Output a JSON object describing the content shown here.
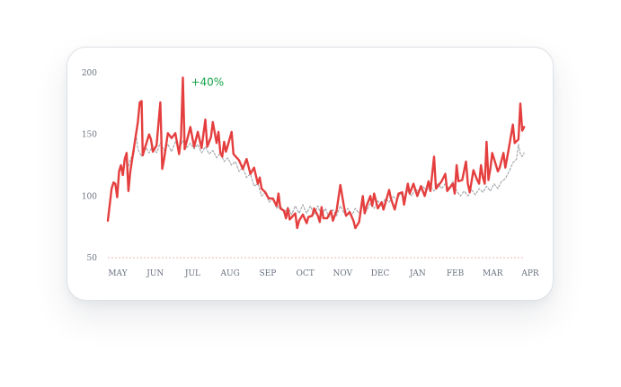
{
  "chart_data": {
    "type": "line",
    "title": "",
    "xlabel": "",
    "ylabel": "",
    "ylim": [
      50,
      200
    ],
    "yticks": [
      50,
      100,
      150,
      200
    ],
    "x_tick_labels": [
      "MAY",
      "JUN",
      "JUL",
      "AUG",
      "SEP",
      "OCT",
      "NOV",
      "DEC",
      "JAN",
      "FEB",
      "MAR",
      "APR"
    ],
    "annotation": {
      "text": "+40%",
      "color": "#16a34a"
    },
    "grid": false,
    "legend": "none",
    "series": [
      {
        "style": "solid",
        "color": "#e53e3e",
        "points": [
          [
            0.0,
            80
          ],
          [
            0.1,
            106
          ],
          [
            0.15,
            111
          ],
          [
            0.2,
            110
          ],
          [
            0.25,
            99
          ],
          [
            0.3,
            120
          ],
          [
            0.35,
            125
          ],
          [
            0.4,
            117
          ],
          [
            0.45,
            130
          ],
          [
            0.5,
            135
          ],
          [
            0.55,
            104
          ],
          [
            0.6,
            120
          ],
          [
            0.7,
            140
          ],
          [
            0.8,
            160
          ],
          [
            0.85,
            176
          ],
          [
            0.9,
            177
          ],
          [
            0.93,
            133
          ],
          [
            1.0,
            140
          ],
          [
            1.1,
            150
          ],
          [
            1.15,
            146
          ],
          [
            1.2,
            136
          ],
          [
            1.3,
            141
          ],
          [
            1.4,
            176
          ],
          [
            1.45,
            122
          ],
          [
            1.5,
            130
          ],
          [
            1.6,
            151
          ],
          [
            1.7,
            147
          ],
          [
            1.8,
            151
          ],
          [
            1.9,
            134
          ],
          [
            1.95,
            147
          ],
          [
            2.0,
            196
          ],
          [
            2.05,
            138
          ],
          [
            2.1,
            144
          ],
          [
            2.2,
            156
          ],
          [
            2.3,
            140
          ],
          [
            2.4,
            152
          ],
          [
            2.5,
            139
          ],
          [
            2.6,
            162
          ],
          [
            2.65,
            140
          ],
          [
            2.75,
            148
          ],
          [
            2.8,
            160
          ],
          [
            2.9,
            143
          ],
          [
            2.95,
            152
          ],
          [
            3.0,
            135
          ],
          [
            3.05,
            132
          ],
          [
            3.1,
            144
          ],
          [
            3.15,
            136
          ],
          [
            3.2,
            141
          ],
          [
            3.3,
            152
          ],
          [
            3.35,
            134
          ],
          [
            3.5,
            129
          ],
          [
            3.6,
            122
          ],
          [
            3.7,
            130
          ],
          [
            3.8,
            118
          ],
          [
            3.9,
            123
          ],
          [
            4.0,
            110
          ],
          [
            4.05,
            115
          ],
          [
            4.1,
            106
          ],
          [
            4.2,
            103
          ],
          [
            4.25,
            100
          ],
          [
            4.3,
            98
          ],
          [
            4.4,
            98
          ],
          [
            4.5,
            92
          ],
          [
            4.55,
            102
          ],
          [
            4.6,
            90
          ],
          [
            4.7,
            88
          ],
          [
            4.75,
            82
          ],
          [
            4.8,
            90
          ],
          [
            4.85,
            81
          ],
          [
            5.0,
            86
          ],
          [
            5.05,
            74
          ],
          [
            5.1,
            80
          ],
          [
            5.2,
            85
          ],
          [
            5.3,
            78
          ],
          [
            5.35,
            83
          ],
          [
            5.45,
            84
          ],
          [
            5.5,
            90
          ],
          [
            5.6,
            84
          ],
          [
            5.65,
            79
          ],
          [
            5.7,
            91
          ],
          [
            5.75,
            82
          ],
          [
            5.85,
            82
          ],
          [
            5.95,
            88
          ],
          [
            6.0,
            80
          ],
          [
            6.1,
            88
          ],
          [
            6.2,
            109
          ],
          [
            6.3,
            91
          ],
          [
            6.35,
            84
          ],
          [
            6.45,
            87
          ],
          [
            6.55,
            80
          ],
          [
            6.6,
            74
          ],
          [
            6.7,
            79
          ],
          [
            6.8,
            100
          ],
          [
            6.85,
            86
          ],
          [
            6.9,
            92
          ],
          [
            7.0,
            100
          ],
          [
            7.05,
            92
          ],
          [
            7.1,
            102
          ],
          [
            7.2,
            90
          ],
          [
            7.3,
            95
          ],
          [
            7.35,
            89
          ],
          [
            7.5,
            105
          ],
          [
            7.55,
            98
          ],
          [
            7.65,
            89
          ],
          [
            7.75,
            102
          ],
          [
            7.85,
            103
          ],
          [
            7.9,
            93
          ],
          [
            8.0,
            110
          ],
          [
            8.05,
            102
          ],
          [
            8.15,
            110
          ],
          [
            8.25,
            100
          ],
          [
            8.35,
            108
          ],
          [
            8.45,
            100
          ],
          [
            8.55,
            112
          ],
          [
            8.6,
            104
          ],
          [
            8.7,
            132
          ],
          [
            8.75,
            106
          ],
          [
            8.8,
            108
          ],
          [
            8.9,
            112
          ],
          [
            9.0,
            118
          ],
          [
            9.05,
            104
          ],
          [
            9.2,
            110
          ],
          [
            9.25,
            102
          ],
          [
            9.3,
            125
          ],
          [
            9.35,
            112
          ],
          [
            9.45,
            113
          ],
          [
            9.55,
            128
          ],
          [
            9.6,
            110
          ],
          [
            9.65,
            103
          ],
          [
            9.75,
            121
          ],
          [
            9.85,
            113
          ],
          [
            9.9,
            110
          ],
          [
            9.95,
            125
          ],
          [
            10.0,
            115
          ],
          [
            10.05,
            110
          ],
          [
            10.1,
            144
          ],
          [
            10.15,
            113
          ],
          [
            10.2,
            122
          ],
          [
            10.25,
            135
          ],
          [
            10.3,
            130
          ],
          [
            10.4,
            120
          ],
          [
            10.45,
            123
          ],
          [
            10.55,
            135
          ],
          [
            10.6,
            123
          ],
          [
            10.7,
            140
          ],
          [
            10.8,
            158
          ],
          [
            10.85,
            143
          ],
          [
            10.95,
            146
          ],
          [
            11.0,
            175
          ],
          [
            11.05,
            153
          ],
          [
            11.1,
            156
          ]
        ]
      },
      {
        "style": "dashed",
        "color": "#a0a4aa",
        "points": [
          [
            0.5,
            118
          ],
          [
            0.6,
            130
          ],
          [
            0.7,
            135
          ],
          [
            0.75,
            150
          ],
          [
            0.8,
            138
          ],
          [
            0.9,
            132
          ],
          [
            1.0,
            140
          ],
          [
            1.1,
            135
          ],
          [
            1.2,
            141
          ],
          [
            1.3,
            135
          ],
          [
            1.4,
            143
          ],
          [
            1.5,
            137
          ],
          [
            1.6,
            142
          ],
          [
            1.7,
            136
          ],
          [
            1.8,
            144
          ],
          [
            1.9,
            138
          ],
          [
            2.0,
            145
          ],
          [
            2.1,
            139
          ],
          [
            2.2,
            143
          ],
          [
            2.3,
            138
          ],
          [
            2.4,
            142
          ],
          [
            2.5,
            135
          ],
          [
            2.6,
            140
          ],
          [
            2.7,
            134
          ],
          [
            2.8,
            137
          ],
          [
            2.9,
            131
          ],
          [
            3.0,
            135
          ],
          [
            3.1,
            128
          ],
          [
            3.2,
            131
          ],
          [
            3.3,
            125
          ],
          [
            3.4,
            128
          ],
          [
            3.5,
            120
          ],
          [
            3.6,
            123
          ],
          [
            3.7,
            115
          ],
          [
            3.8,
            118
          ],
          [
            3.9,
            108
          ],
          [
            4.0,
            110
          ],
          [
            4.1,
            100
          ],
          [
            4.2,
            103
          ],
          [
            4.3,
            95
          ],
          [
            4.4,
            98
          ],
          [
            4.5,
            90
          ],
          [
            4.6,
            93
          ],
          [
            4.7,
            86
          ],
          [
            4.8,
            91
          ],
          [
            4.9,
            85
          ],
          [
            5.0,
            92
          ],
          [
            5.1,
            86
          ],
          [
            5.2,
            93
          ],
          [
            5.3,
            86
          ],
          [
            5.4,
            92
          ],
          [
            5.5,
            85
          ],
          [
            5.6,
            92
          ],
          [
            5.7,
            84
          ],
          [
            5.8,
            90
          ],
          [
            5.9,
            83
          ],
          [
            6.0,
            89
          ],
          [
            6.1,
            84
          ],
          [
            6.2,
            92
          ],
          [
            6.3,
            86
          ],
          [
            6.4,
            90
          ],
          [
            6.5,
            84
          ],
          [
            6.6,
            90
          ],
          [
            6.7,
            86
          ],
          [
            6.8,
            92
          ],
          [
            6.9,
            88
          ],
          [
            7.0,
            94
          ],
          [
            7.1,
            90
          ],
          [
            7.2,
            96
          ],
          [
            7.3,
            92
          ],
          [
            7.4,
            98
          ],
          [
            7.5,
            95
          ],
          [
            7.6,
            100
          ],
          [
            7.7,
            97
          ],
          [
            7.8,
            102
          ],
          [
            7.9,
            99
          ],
          [
            8.0,
            104
          ],
          [
            8.1,
            100
          ],
          [
            8.2,
            106
          ],
          [
            8.3,
            103
          ],
          [
            8.4,
            108
          ],
          [
            8.5,
            104
          ],
          [
            8.6,
            108
          ],
          [
            8.7,
            104
          ],
          [
            8.8,
            110
          ],
          [
            8.9,
            106
          ],
          [
            9.0,
            110
          ],
          [
            9.1,
            106
          ],
          [
            9.2,
            112
          ],
          [
            9.3,
            104
          ],
          [
            9.4,
            100
          ],
          [
            9.5,
            104
          ],
          [
            9.6,
            100
          ],
          [
            9.7,
            105
          ],
          [
            9.8,
            101
          ],
          [
            9.9,
            106
          ],
          [
            10.0,
            103
          ],
          [
            10.1,
            108
          ],
          [
            10.2,
            104
          ],
          [
            10.3,
            110
          ],
          [
            10.4,
            106
          ],
          [
            10.5,
            112
          ],
          [
            10.6,
            114
          ],
          [
            10.7,
            120
          ],
          [
            10.8,
            127
          ],
          [
            10.9,
            130
          ],
          [
            10.95,
            142
          ],
          [
            11.0,
            134
          ],
          [
            11.05,
            132
          ],
          [
            11.1,
            135
          ]
        ]
      }
    ]
  }
}
